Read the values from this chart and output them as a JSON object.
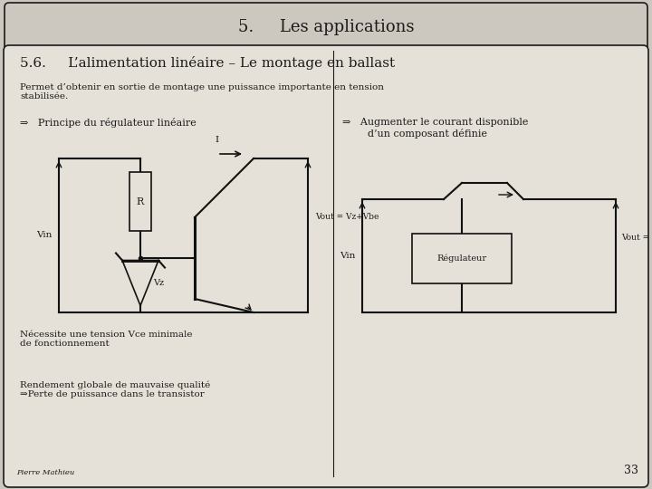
{
  "bg_outer": "#ccc8bf",
  "bg_inner": "#e5e1d8",
  "title_header": "5.     Les applications",
  "section_title": "5.6.     L’alimentation linéaire – Le montage en ballast",
  "intro_text": "Permet d’obtenir en sortie de montage une puissance importante en tension\nstabilisée.",
  "bullet1": "⇒   Principe du régulateur linéaire",
  "bullet2": "⇒   Augmenter le courant disponible\n        d’un composant définie",
  "note1": "Nécessite une tension Vce minimale\nde fonctionnement",
  "note2": "Rendement globale de mauvaise qualité\n⇒Perte de puissance dans le transistor",
  "footer": "Pierre Mathieu",
  "page_num": "33",
  "text_color": "#1a1a1a",
  "line_color": "#1a1a1a",
  "circuit_color": "#111111"
}
